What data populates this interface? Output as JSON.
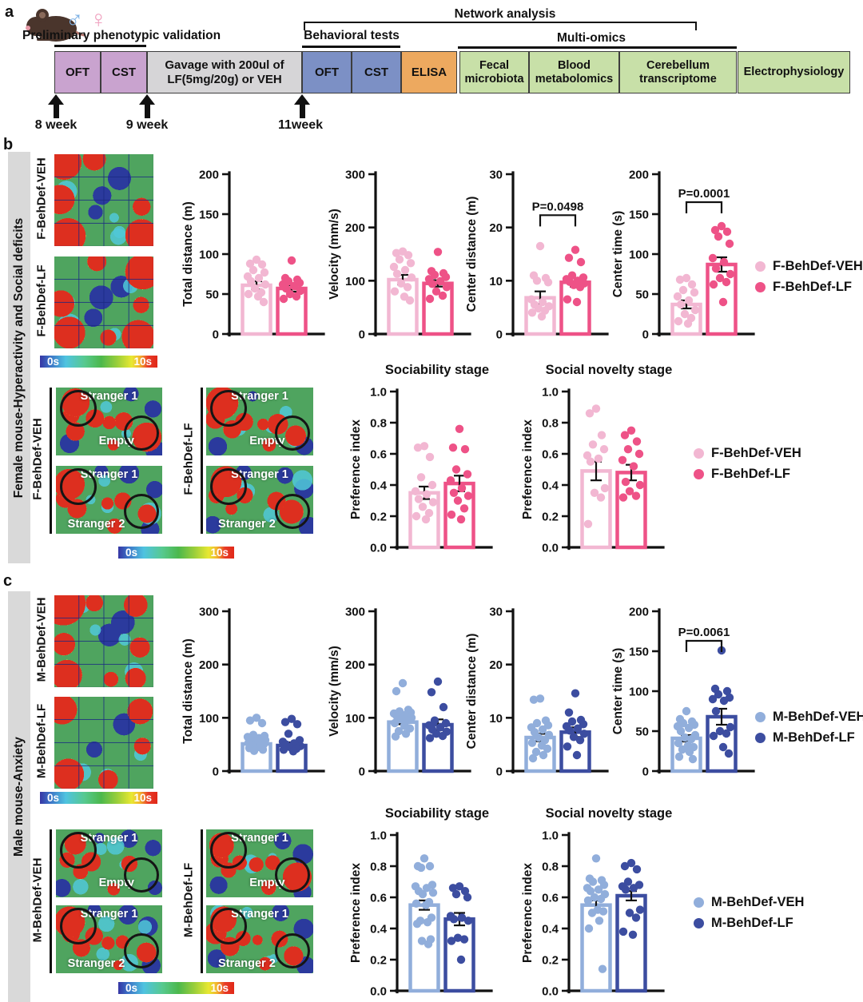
{
  "panel_a": {
    "label": "a",
    "male_symbol": "♂",
    "female_symbol": "♀",
    "preliminary_label": "Preliminary phenotypic validation",
    "behavioral_label": "Behavioral tests",
    "network_label": "Network analysis",
    "multiomics_label": "Multi-omics",
    "boxes": [
      {
        "label": "OFT",
        "color": "#c9a3cf"
      },
      {
        "label": "CST",
        "color": "#c9a3cf"
      },
      {
        "label": "Gavage with 200ul of LF(5mg/20g) or VEH",
        "color": "#d6d5d7"
      },
      {
        "label": "OFT",
        "color": "#7c90c5"
      },
      {
        "label": "CST",
        "color": "#7c90c5"
      },
      {
        "label": "ELISA",
        "color": "#eda95f"
      },
      {
        "label": "Fecal microbiota",
        "color": "#c8e0a8"
      },
      {
        "label": "Blood metabolomics",
        "color": "#c8e0a8"
      },
      {
        "label": "Cerebellum transcriptome",
        "color": "#c8e0a8"
      },
      {
        "label": "Electrophysiology",
        "color": "#c8e0a8"
      }
    ],
    "weeks": [
      "8 week",
      "9 week",
      "11week"
    ]
  },
  "panel_b": {
    "label": "b",
    "sidebar": "Female mouse-Hyperactivity and Social deficits",
    "veh": "F-BehDef-VEH",
    "lf": "F-BehDef-LF",
    "colorbar": {
      "min": "0s",
      "max": "10s"
    },
    "soc": {
      "stranger1": "Stranger 1",
      "empty": "Empty",
      "stranger2": "Stranger 2"
    },
    "legend": [
      {
        "label": "F-BehDef-VEH",
        "color": "#f2b7d2"
      },
      {
        "label": "F-BehDef-LF",
        "color": "#ee5287"
      }
    ]
  },
  "panel_c": {
    "label": "c",
    "sidebar": "Male mouse-Anxiety",
    "veh": "M-BehDef-VEH",
    "lf": "M-BehDef-LF",
    "colorbar": {
      "min": "0s",
      "max": "10s"
    },
    "soc": {
      "stranger1": "Stranger 1",
      "empty": "Empty",
      "stranger2": "Stranger 2"
    },
    "legend": [
      {
        "label": "M-BehDef-VEH",
        "color": "#91aedb"
      },
      {
        "label": "M-BehDef-LF",
        "color": "#3c4da0"
      }
    ]
  },
  "charts": {
    "b_total_distance": {
      "ylabel": "Total distance (m)",
      "ymax": 200,
      "yticks": [
        "0",
        "50",
        "100",
        "150",
        "200"
      ],
      "groups": [
        {
          "name": "F-BehDef-VEH",
          "color": "#f2b7d2",
          "mean": 61,
          "sem": 5,
          "points": [
            93,
            88,
            87,
            80,
            77,
            72,
            70,
            66,
            62,
            57,
            52,
            50,
            47,
            40
          ]
        },
        {
          "name": "F-BehDef-LF",
          "color": "#ee5287",
          "mean": 57,
          "sem": 4,
          "points": [
            92,
            70,
            68,
            66,
            64,
            62,
            60,
            57,
            54,
            50,
            47,
            44
          ]
        }
      ]
    },
    "b_velocity": {
      "ylabel": "Velocity (mm/s)",
      "ymax": 300,
      "yticks": [
        "0",
        "100",
        "200",
        "300"
      ],
      "groups": [
        {
          "name": "F-BehDef-VEH",
          "color": "#f2b7d2",
          "mean": 102,
          "sem": 9,
          "points": [
            155,
            152,
            148,
            140,
            133,
            126,
            120,
            113,
            106,
            95,
            88,
            80,
            70,
            63
          ]
        },
        {
          "name": "F-BehDef-LF",
          "color": "#ee5287",
          "mean": 95,
          "sem": 6,
          "points": [
            154,
            118,
            114,
            111,
            107,
            103,
            99,
            94,
            88,
            80,
            72,
            66
          ]
        }
      ]
    },
    "b_center_distance": {
      "ylabel": "Center distance (m)",
      "ymax": 30,
      "yticks": [
        "0",
        "10",
        "20",
        "30"
      ],
      "p_label": "P=0.0498",
      "p_y": 22.3,
      "groups": [
        {
          "name": "F-BehDef-VEH",
          "color": "#f2b7d2",
          "mean": 6.8,
          "sem": 1.2,
          "points": [
            16.5,
            11,
            10.5,
            10,
            9.7,
            6.5,
            6,
            5.5,
            5.2,
            4.8,
            4.4,
            4,
            3.3
          ]
        },
        {
          "name": "F-BehDef-LF",
          "color": "#ee5287",
          "mean": 9.7,
          "sem": 0.8,
          "points": [
            15.8,
            14.3,
            13.5,
            11,
            10.6,
            10.3,
            10,
            9.8,
            9.5,
            9.2,
            8.8,
            6.5,
            6
          ]
        }
      ]
    },
    "b_center_time": {
      "ylabel": "Center time (s)",
      "ymax": 200,
      "yticks": [
        "0",
        "50",
        "100",
        "150",
        "200"
      ],
      "p_label": "P=0.0001",
      "p_y": 165,
      "groups": [
        {
          "name": "F-BehDef-VEH",
          "color": "#f2b7d2",
          "mean": 37,
          "sem": 5,
          "points": [
            70,
            68,
            62,
            55,
            52,
            47,
            42,
            37,
            30,
            25,
            20,
            16,
            13
          ]
        },
        {
          "name": "F-BehDef-LF",
          "color": "#ee5287",
          "mean": 87,
          "sem": 9,
          "points": [
            135,
            130,
            128,
            122,
            113,
            95,
            90,
            82,
            75,
            70,
            65,
            62,
            40
          ]
        }
      ]
    },
    "b_sociability": {
      "title": "Sociability stage",
      "ylabel": "Preference index",
      "ymax": 1,
      "yticks": [
        "0.0",
        "0.2",
        "0.4",
        "0.6",
        "0.8",
        "1.0"
      ],
      "groups": [
        {
          "name": "F-BehDef-VEH",
          "color": "#f2b7d2",
          "mean": 0.35,
          "sem": 0.04,
          "points": [
            0.65,
            0.64,
            0.58,
            0.45,
            0.4,
            0.36,
            0.34,
            0.31,
            0.29,
            0.26,
            0.22,
            0.2,
            0.18
          ]
        },
        {
          "name": "F-BehDef-LF",
          "color": "#ee5287",
          "mean": 0.41,
          "sem": 0.05,
          "points": [
            0.76,
            0.64,
            0.63,
            0.5,
            0.47,
            0.43,
            0.38,
            0.35,
            0.33,
            0.3,
            0.25,
            0.21,
            0.18
          ]
        }
      ]
    },
    "b_social_novelty": {
      "title": "Social novelty stage",
      "ylabel": "Preference index",
      "ymax": 1,
      "yticks": [
        "0.0",
        "0.2",
        "0.4",
        "0.6",
        "0.8",
        "1.0"
      ],
      "groups": [
        {
          "name": "F-BehDef-VEH",
          "color": "#f2b7d2",
          "mean": 0.49,
          "sem": 0.06,
          "points": [
            0.89,
            0.86,
            0.72,
            0.66,
            0.63,
            0.59,
            0.57,
            0.55,
            0.38,
            0.35,
            0.32,
            0.15
          ]
        },
        {
          "name": "F-BehDef-LF",
          "color": "#ee5287",
          "mean": 0.48,
          "sem": 0.05,
          "points": [
            0.75,
            0.72,
            0.68,
            0.63,
            0.6,
            0.56,
            0.52,
            0.42,
            0.4,
            0.36,
            0.33,
            0.32
          ]
        }
      ]
    },
    "c_total_distance": {
      "ylabel": "Total distance (m)",
      "ymax": 300,
      "yticks": [
        "0",
        "100",
        "200",
        "300"
      ],
      "groups": [
        {
          "name": "M-BehDef-VEH",
          "color": "#91aedb",
          "mean": 51,
          "sem": 3,
          "points": [
            100,
            95,
            90,
            68,
            66,
            64,
            62,
            60,
            58,
            56,
            55,
            53,
            52,
            50,
            48,
            45,
            43,
            40,
            38
          ]
        },
        {
          "name": "M-BehDef-LF",
          "color": "#3c4da0",
          "mean": 48,
          "sem": 6,
          "points": [
            98,
            92,
            88,
            70,
            58,
            55,
            52,
            50,
            47,
            45,
            42,
            40,
            37
          ]
        }
      ]
    },
    "c_velocity": {
      "ylabel": "Velocity (mm/s)",
      "ymax": 300,
      "yticks": [
        "0",
        "100",
        "200",
        "300"
      ],
      "groups": [
        {
          "name": "M-BehDef-VEH",
          "color": "#91aedb",
          "mean": 92,
          "sem": 4,
          "points": [
            165,
            150,
            115,
            112,
            110,
            108,
            105,
            102,
            100,
            98,
            95,
            90,
            85,
            80,
            75,
            70,
            65
          ]
        },
        {
          "name": "M-BehDef-LF",
          "color": "#3c4da0",
          "mean": 87,
          "sem": 10,
          "points": [
            168,
            148,
            120,
            95,
            90,
            86,
            82,
            78,
            74,
            70,
            66,
            62
          ]
        }
      ]
    },
    "c_center_distance": {
      "ylabel": "Center distance (m)",
      "ymax": 30,
      "yticks": [
        "0",
        "10",
        "20",
        "30"
      ],
      "groups": [
        {
          "name": "M-BehDef-VEH",
          "color": "#91aedb",
          "mean": 6.3,
          "sem": 0.7,
          "points": [
            13.6,
            13.4,
            9.5,
            9,
            8.6,
            8.2,
            7.8,
            7.3,
            6.8,
            6.3,
            5.8,
            5.3,
            4.8,
            4.2,
            3.6,
            3,
            2.4
          ]
        },
        {
          "name": "M-BehDef-LF",
          "color": "#3c4da0",
          "mean": 7.3,
          "sem": 0.9,
          "points": [
            14.6,
            11,
            9.6,
            9.3,
            8.8,
            8.4,
            8,
            7.6,
            7,
            6.4,
            5.8,
            4.6,
            3
          ]
        }
      ]
    },
    "c_center_time": {
      "ylabel": "Center time (s)",
      "ymax": 200,
      "yticks": [
        "0",
        "50",
        "100",
        "150",
        "200"
      ],
      "p_label": "P=0.0061",
      "p_y": 163,
      "groups": [
        {
          "name": "M-BehDef-VEH",
          "color": "#91aedb",
          "mean": 41,
          "sem": 4,
          "points": [
            75,
            65,
            62,
            60,
            58,
            56,
            54,
            50,
            45,
            42,
            40,
            35,
            32,
            30,
            27,
            24,
            18,
            15
          ]
        },
        {
          "name": "M-BehDef-LF",
          "color": "#3c4da0",
          "mean": 68,
          "sem": 10,
          "points": [
            151,
            103,
            100,
            96,
            92,
            90,
            88,
            75,
            55,
            50,
            47,
            44,
            30,
            22
          ]
        }
      ]
    },
    "c_sociability": {
      "title": "Sociability stage",
      "ylabel": "Preference index",
      "ymax": 1,
      "yticks": [
        "0.0",
        "0.2",
        "0.4",
        "0.6",
        "0.8",
        "1.0"
      ],
      "groups": [
        {
          "name": "M-BehDef-VEH",
          "color": "#91aedb",
          "mean": 0.55,
          "sem": 0.03,
          "points": [
            0.85,
            0.8,
            0.8,
            0.79,
            0.68,
            0.67,
            0.66,
            0.64,
            0.63,
            0.62,
            0.57,
            0.56,
            0.55,
            0.47,
            0.45,
            0.44,
            0.43,
            0.33,
            0.32,
            0.3
          ]
        },
        {
          "name": "M-BehDef-LF",
          "color": "#3c4da0",
          "mean": 0.46,
          "sem": 0.04,
          "points": [
            0.67,
            0.66,
            0.64,
            0.62,
            0.6,
            0.48,
            0.47,
            0.46,
            0.45,
            0.34,
            0.33,
            0.32,
            0.2
          ]
        }
      ]
    },
    "c_social_novelty": {
      "title": "Social novelty stage",
      "ylabel": "Preference index",
      "ymax": 1,
      "yticks": [
        "0.0",
        "0.2",
        "0.4",
        "0.6",
        "0.8",
        "1.0"
      ],
      "groups": [
        {
          "name": "M-BehDef-VEH",
          "color": "#91aedb",
          "mean": 0.55,
          "sem": 0.03,
          "points": [
            0.85,
            0.72,
            0.71,
            0.7,
            0.68,
            0.66,
            0.65,
            0.64,
            0.62,
            0.6,
            0.59,
            0.58,
            0.52,
            0.51,
            0.5,
            0.45,
            0.4,
            0.14
          ]
        },
        {
          "name": "M-BehDef-LF",
          "color": "#3c4da0",
          "mean": 0.61,
          "sem": 0.03,
          "points": [
            0.82,
            0.8,
            0.78,
            0.7,
            0.68,
            0.67,
            0.66,
            0.65,
            0.52,
            0.5,
            0.47,
            0.38,
            0.36
          ]
        }
      ]
    }
  }
}
